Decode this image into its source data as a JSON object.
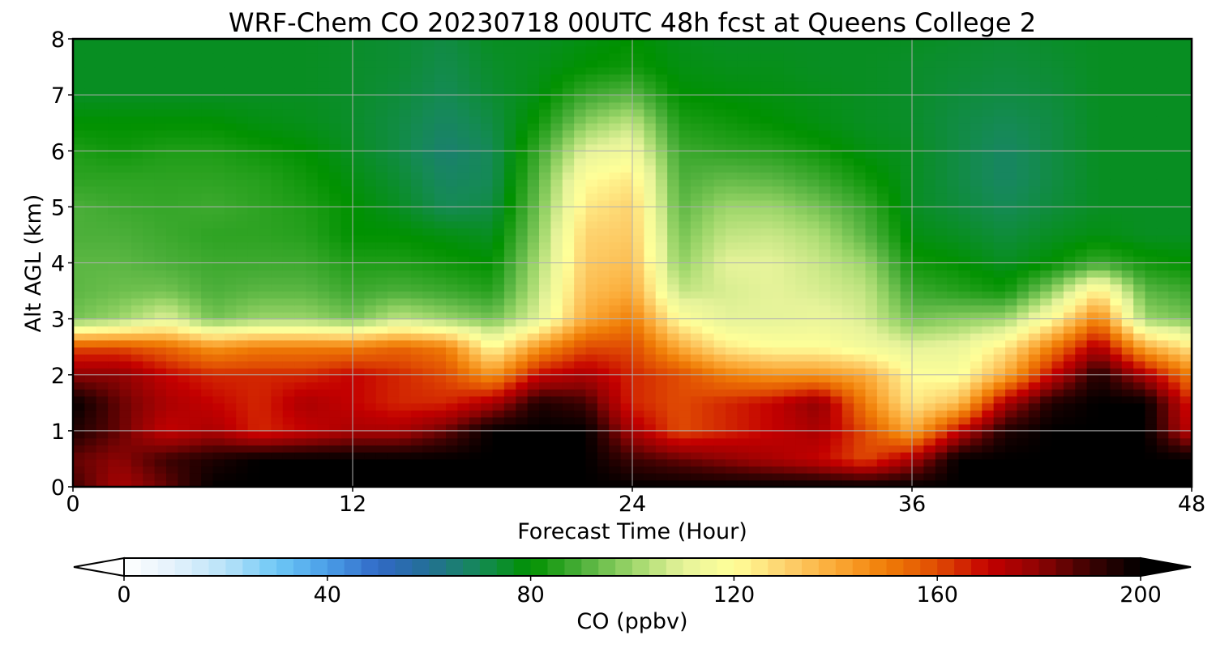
{
  "chart_data": {
    "type": "heatmap",
    "title": "WRF-Chem CO  20230718 00UTC 48h fcst at Queens College 2",
    "xlabel": "Forecast Time (Hour)",
    "ylabel": "Alt AGL (km)",
    "xlim": [
      0,
      48
    ],
    "ylim": [
      0,
      8
    ],
    "x_ticks": [
      0,
      12,
      24,
      36,
      48
    ],
    "y_ticks": [
      0,
      1,
      2,
      3,
      4,
      5,
      6,
      7,
      8
    ],
    "grid": true,
    "colorbar": {
      "label": "CO  (ppbv)",
      "range": [
        0,
        200
      ],
      "ticks": [
        0,
        40,
        80,
        120,
        160,
        200
      ],
      "extend": "both",
      "colors": [
        "#ffffff",
        "#e3f1fb",
        "#b8e2f8",
        "#6ec8f5",
        "#4a9ee8",
        "#3169c6",
        "#236f95",
        "#158a55",
        "#009100",
        "#4caf3a",
        "#9dd66a",
        "#e6f39a",
        "#ffff99",
        "#fdd26e",
        "#fba936",
        "#f07d06",
        "#e04c03",
        "#c40000",
        "#8e0303",
        "#3c0202",
        "#000000"
      ]
    },
    "x_hours": [
      0,
      2,
      4,
      6,
      8,
      10,
      12,
      14,
      16,
      18,
      20,
      22,
      24,
      26,
      28,
      30,
      32,
      34,
      36,
      38,
      40,
      42,
      44,
      46,
      48
    ],
    "z_levels_km": [
      0,
      0.5,
      1,
      1.5,
      2,
      2.5,
      3,
      3.5,
      4,
      4.5,
      5,
      5.5,
      6,
      6.5,
      7,
      7.5,
      8
    ],
    "co_ppbv": [
      [
        190,
        175,
        185,
        200,
        200,
        200,
        200,
        200,
        200,
        200,
        200,
        200,
        200,
        200,
        200,
        200,
        200,
        200,
        200,
        200,
        200,
        200,
        200,
        200,
        200
      ],
      [
        185,
        180,
        190,
        195,
        200,
        200,
        200,
        200,
        200,
        200,
        200,
        200,
        190,
        185,
        180,
        175,
        170,
        160,
        175,
        200,
        200,
        200,
        200,
        200,
        200
      ],
      [
        195,
        185,
        170,
        175,
        165,
        170,
        175,
        175,
        185,
        200,
        200,
        200,
        175,
        160,
        165,
        170,
        175,
        160,
        140,
        170,
        195,
        200,
        200,
        200,
        170
      ],
      [
        200,
        185,
        175,
        170,
        165,
        175,
        170,
        165,
        165,
        175,
        195,
        190,
        165,
        160,
        165,
        170,
        180,
        150,
        125,
        135,
        175,
        195,
        200,
        200,
        165
      ],
      [
        180,
        180,
        170,
        165,
        165,
        165,
        170,
        165,
        160,
        145,
        170,
        175,
        165,
        160,
        150,
        145,
        145,
        140,
        120,
        118,
        140,
        170,
        195,
        175,
        150
      ],
      [
        160,
        160,
        155,
        145,
        150,
        150,
        150,
        155,
        150,
        120,
        145,
        160,
        160,
        140,
        125,
        120,
        120,
        115,
        110,
        112,
        125,
        150,
        175,
        140,
        125
      ],
      [
        95,
        100,
        110,
        95,
        100,
        100,
        95,
        105,
        100,
        95,
        110,
        140,
        150,
        120,
        110,
        110,
        112,
        108,
        95,
        98,
        100,
        120,
        150,
        100,
        95
      ],
      [
        92,
        94,
        95,
        90,
        92,
        92,
        88,
        90,
        88,
        85,
        105,
        135,
        140,
        105,
        108,
        110,
        108,
        105,
        88,
        85,
        82,
        98,
        125,
        92,
        88
      ],
      [
        92,
        92,
        90,
        88,
        88,
        88,
        84,
        84,
        82,
        80,
        102,
        132,
        135,
        98,
        110,
        110,
        106,
        100,
        82,
        80,
        76,
        80,
        88,
        82,
        80
      ],
      [
        90,
        90,
        88,
        86,
        86,
        85,
        80,
        80,
        78,
        76,
        98,
        130,
        132,
        95,
        105,
        106,
        102,
        92,
        78,
        76,
        73,
        76,
        78,
        76,
        76
      ],
      [
        90,
        88,
        87,
        88,
        86,
        84,
        80,
        76,
        70,
        72,
        95,
        125,
        130,
        92,
        100,
        100,
        95,
        88,
        76,
        73,
        70,
        73,
        76,
        76,
        76
      ],
      [
        86,
        86,
        86,
        86,
        85,
        82,
        78,
        74,
        68,
        70,
        92,
        120,
        125,
        90,
        93,
        92,
        88,
        82,
        76,
        72,
        68,
        72,
        76,
        76,
        76
      ],
      [
        84,
        82,
        84,
        84,
        82,
        80,
        76,
        72,
        66,
        70,
        88,
        110,
        115,
        88,
        86,
        85,
        82,
        78,
        76,
        72,
        68,
        72,
        76,
        76,
        76
      ],
      [
        80,
        80,
        80,
        80,
        78,
        77,
        75,
        72,
        68,
        72,
        82,
        98,
        105,
        84,
        82,
        80,
        78,
        76,
        75,
        72,
        70,
        72,
        76,
        76,
        76
      ],
      [
        76,
        76,
        76,
        76,
        76,
        76,
        75,
        73,
        70,
        74,
        78,
        88,
        92,
        80,
        79,
        78,
        77,
        76,
        75,
        73,
        72,
        73,
        76,
        76,
        76
      ],
      [
        76,
        76,
        76,
        76,
        76,
        76,
        75,
        74,
        71,
        75,
        77,
        80,
        82,
        78,
        77,
        77,
        76,
        76,
        75,
        74,
        73,
        74,
        76,
        76,
        76
      ],
      [
        76,
        76,
        76,
        76,
        76,
        76,
        75,
        74,
        72,
        76,
        76,
        78,
        80,
        77,
        76,
        76,
        76,
        76,
        76,
        75,
        74,
        75,
        76,
        76,
        76
      ]
    ]
  }
}
